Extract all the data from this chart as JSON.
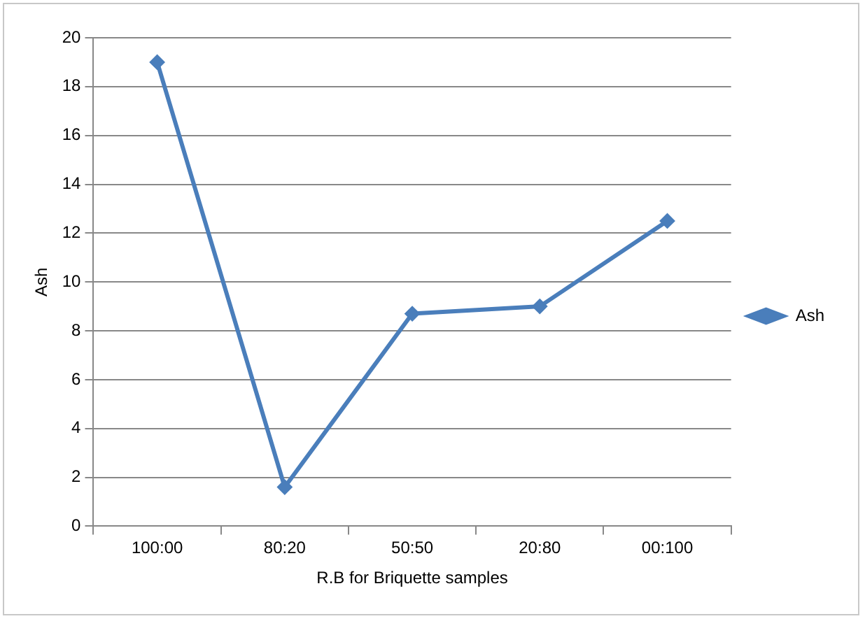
{
  "chart_data": {
    "type": "line",
    "xlabel": "R.B for Briquette samples",
    "ylabel": "Ash",
    "categories": [
      "100:00",
      "80:20",
      "50:50",
      "20:80",
      "00:100"
    ],
    "series": [
      {
        "name": "Ash",
        "color": "#4a7ebb",
        "values": [
          19,
          1.6,
          8.7,
          9,
          12.5
        ]
      }
    ],
    "ylim": [
      0,
      20
    ],
    "yticks": [
      0,
      2,
      4,
      6,
      8,
      10,
      12,
      14,
      16,
      18,
      20
    ],
    "grid": "y",
    "legend": "right",
    "marker": "diamond",
    "line_style": "solid"
  }
}
